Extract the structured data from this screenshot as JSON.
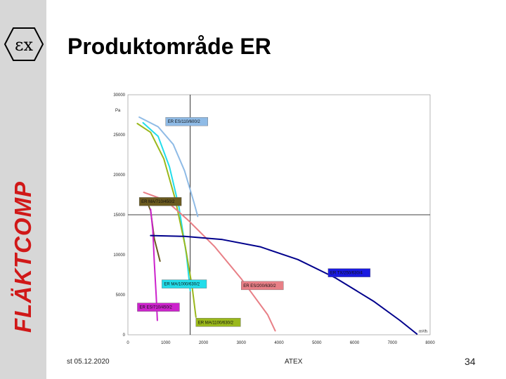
{
  "slide": {
    "title": "Produktområde ER",
    "brand": "FLÄKTCOMP",
    "logo_icon": "ex-atex-icon",
    "footer_date": "st 05.12.2020",
    "footer_center": "ATEX",
    "page_number": "34"
  },
  "chart_data": {
    "type": "line",
    "title": "",
    "xlabel": "m³/h",
    "ylabel": "Pa",
    "xlim": [
      0,
      8000
    ],
    "ylim": [
      0,
      30000
    ],
    "x_ticks": [
      "0",
      "1000",
      "2000",
      "3000",
      "4000",
      "5000",
      "6000",
      "7000",
      "8000"
    ],
    "y_ticks": [
      "0",
      "5000",
      "10000",
      "15000",
      "20000",
      "25000",
      "30000"
    ],
    "reference_lines": {
      "x": 1650,
      "y": 15000
    },
    "series": [
      {
        "color": "#8fbbe6",
        "points": [
          [
            300,
            27200
          ],
          [
            800,
            26000
          ],
          [
            1200,
            23800
          ],
          [
            1500,
            20500
          ],
          [
            1750,
            16500
          ],
          [
            1850,
            14800
          ]
        ]
      },
      {
        "color": "#22ddea",
        "points": [
          [
            400,
            26500
          ],
          [
            800,
            24800
          ],
          [
            1100,
            21000
          ],
          [
            1350,
            16000
          ],
          [
            1550,
            10000
          ],
          [
            1650,
            5500
          ]
        ]
      },
      {
        "color": "#9ab81c",
        "points": [
          [
            250,
            26400
          ],
          [
            600,
            25300
          ],
          [
            950,
            22000
          ],
          [
            1250,
            17000
          ],
          [
            1520,
            11000
          ],
          [
            1700,
            6000
          ],
          [
            1800,
            2200
          ]
        ]
      },
      {
        "color": "#e87f86",
        "points": [
          [
            420,
            17800
          ],
          [
            1000,
            16800
          ],
          [
            1600,
            14300
          ],
          [
            2300,
            11000
          ],
          [
            3000,
            7000
          ],
          [
            3700,
            2500
          ],
          [
            3900,
            500
          ]
        ]
      },
      {
        "color": "#6a5a20",
        "points": [
          [
            480,
            17000
          ],
          [
            600,
            15500
          ],
          [
            700,
            12000
          ],
          [
            850,
            9200
          ]
        ]
      },
      {
        "color": "#cc22cc",
        "points": [
          [
            600,
            15700
          ],
          [
            660,
            13000
          ],
          [
            700,
            9000
          ],
          [
            750,
            4800
          ],
          [
            780,
            1800
          ]
        ]
      },
      {
        "color": "#00008c",
        "points": [
          [
            600,
            12400
          ],
          [
            1500,
            12300
          ],
          [
            2500,
            11900
          ],
          [
            3500,
            11000
          ],
          [
            4500,
            9400
          ],
          [
            5500,
            7100
          ],
          [
            6500,
            4200
          ],
          [
            7200,
            1800
          ],
          [
            7650,
            100
          ]
        ]
      }
    ],
    "boxes": [
      {
        "label": "ER ES/110/600/2",
        "x": 1000,
        "y": 26300,
        "color": "#8fbbe6"
      },
      {
        "label": "ER MA/710/450/2",
        "x": 300,
        "y": 16300,
        "color": "#6a5a20"
      },
      {
        "label": "ER TX/250/630/4",
        "x": 5300,
        "y": 7400,
        "color": "#1a1ae0"
      },
      {
        "label": "ER MA/1000/630/2",
        "x": 900,
        "y": 6000,
        "color": "#22ddea"
      },
      {
        "label": "ER ES/200/630/2",
        "x": 3000,
        "y": 5800,
        "color": "#e87f86"
      },
      {
        "label": "ER ES/710/450/2",
        "x": 250,
        "y": 3100,
        "color": "#cc22cc"
      },
      {
        "label": "ER MA/1100/630/2",
        "x": 1800,
        "y": 1200,
        "color": "#9ab81c"
      }
    ]
  }
}
